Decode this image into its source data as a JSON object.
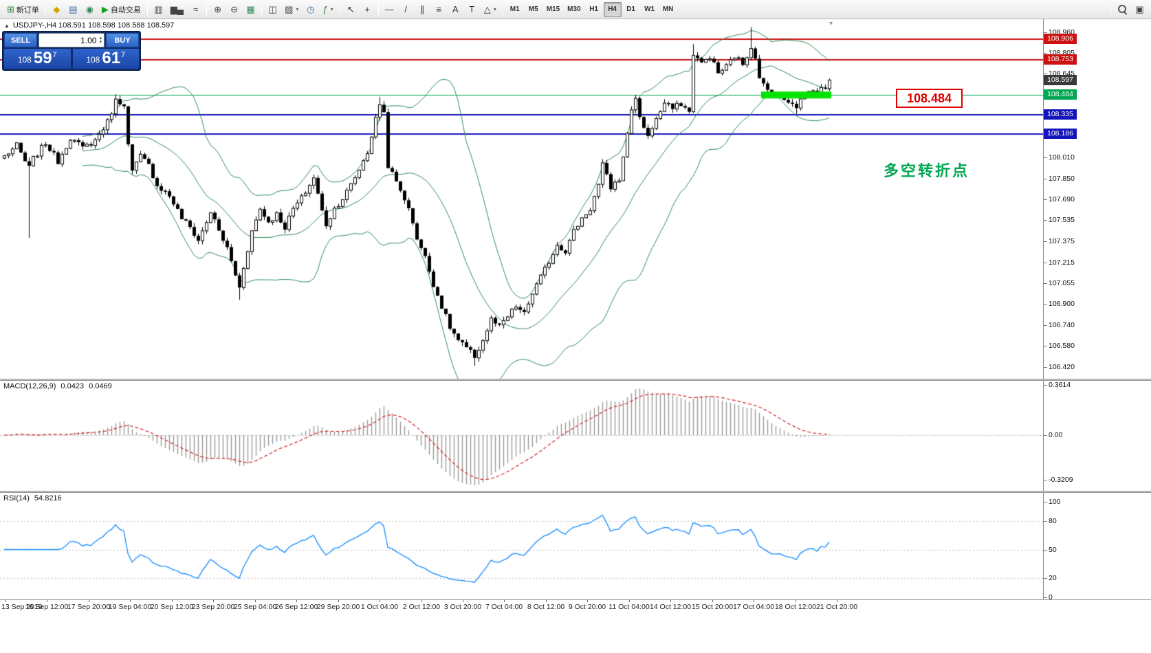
{
  "toolbar": {
    "groups": [
      {
        "items": [
          {
            "name": "new-order-button",
            "glyph": "⊞",
            "color": "#2e7d32",
            "label": "新订单"
          }
        ]
      },
      {
        "items": [
          {
            "name": "metaeditor-button",
            "glyph": "◆",
            "color": "#d8a400"
          },
          {
            "name": "market-depth-button",
            "glyph": "▤",
            "color": "#3a6ea5"
          },
          {
            "name": "strategy-tester-button",
            "glyph": "◉",
            "color": "#2e8b57"
          },
          {
            "name": "autotrade-button",
            "glyph": "▶",
            "color": "#18a018",
            "label": "自动交易"
          }
        ]
      },
      {
        "items": [
          {
            "name": "bar-chart-button",
            "glyph": "▥",
            "color": "#444"
          },
          {
            "name": "candlestick-chart-button",
            "glyph": "▆▄",
            "color": "#444"
          },
          {
            "name": "line-chart-button",
            "glyph": "≈",
            "color": "#444"
          }
        ]
      },
      {
        "items": [
          {
            "name": "zoom-in-button",
            "glyph": "⊕",
            "color": "#444"
          },
          {
            "name": "zoom-out-button",
            "glyph": "⊖",
            "color": "#444"
          },
          {
            "name": "grid-button",
            "glyph": "▦",
            "color": "#2e8b57"
          }
        ]
      },
      {
        "items": [
          {
            "name": "tile-windows-button",
            "glyph": "◫",
            "color": "#444"
          },
          {
            "name": "new-chart-button",
            "glyph": "▧",
            "color": "#444",
            "dropdown": true
          },
          {
            "name": "profiles-button",
            "glyph": "◷",
            "color": "#3a6ea5"
          },
          {
            "name": "indicators-button",
            "glyph": "ƒ",
            "color": "#2e7d32",
            "dropdown": true
          }
        ]
      },
      {
        "items": [
          {
            "name": "cursor-button",
            "glyph": "↖",
            "color": "#333"
          },
          {
            "name": "crosshair-button",
            "glyph": "+",
            "color": "#333"
          }
        ]
      },
      {
        "items": [
          {
            "name": "horizontal-line-button",
            "glyph": "—",
            "color": "#333"
          },
          {
            "name": "trendline-button",
            "glyph": "/",
            "color": "#333"
          },
          {
            "name": "channel-button",
            "glyph": "∥",
            "color": "#333"
          },
          {
            "name": "fibonacci-button",
            "glyph": "≡",
            "color": "#333"
          },
          {
            "name": "text-button",
            "glyph": "A",
            "color": "#333"
          },
          {
            "name": "label-button",
            "glyph": "T",
            "color": "#333"
          },
          {
            "name": "shapes-button",
            "glyph": "△",
            "color": "#333",
            "dropdown": true
          }
        ]
      },
      {
        "type": "timeframes"
      },
      {
        "type": "spacer"
      },
      {
        "items": [
          {
            "name": "search-button",
            "css": "mag"
          },
          {
            "name": "windows-list-button",
            "glyph": "▣",
            "color": "#444"
          }
        ]
      }
    ],
    "timeframes": [
      "M1",
      "M5",
      "M15",
      "M30",
      "H1",
      "H4",
      "D1",
      "W1",
      "MN"
    ],
    "active_timeframe": "H4"
  },
  "quote_line": {
    "symbol": "USDJPY-",
    "timeframe": "H4",
    "open": "108.591",
    "high": "108.598",
    "low": "108.588",
    "close": "108.597",
    "display": "USDJPY-,H4  108.591 108.598 108.588 108.597"
  },
  "trade_panel": {
    "sell_label": "SELL",
    "buy_label": "BUY",
    "volume": "1.00",
    "sell_prefix": "108",
    "sell_big": "59",
    "sell_sup": "7",
    "buy_prefix": "108",
    "buy_big": "61",
    "buy_sup": "7"
  },
  "chart": {
    "hlines": [
      {
        "price": 108.906,
        "color": "#cc1111",
        "width": 2
      },
      {
        "price": 108.753,
        "color": "#cc1111",
        "width": 2
      },
      {
        "price": 108.484,
        "color": "#00a651",
        "width": 1
      },
      {
        "price": 108.335,
        "color": "#1414bb",
        "width": 2
      },
      {
        "price": 108.186,
        "color": "#1414bb",
        "width": 2
      }
    ],
    "badges": [
      {
        "label": "108.906",
        "price": 108.906,
        "bg": "#cc1111"
      },
      {
        "label": "108.753",
        "price": 108.753,
        "bg": "#cc1111"
      },
      {
        "label": "108.597",
        "price": 108.597,
        "bg": "#3a3a3a"
      },
      {
        "label": "108.484",
        "price": 108.484,
        "bg": "#00a651"
      },
      {
        "label": "108.335",
        "price": 108.335,
        "bg": "#1414bb"
      },
      {
        "label": "108.186",
        "price": 108.186,
        "bg": "#1414bb"
      }
    ],
    "green_zone": {
      "price": 108.484,
      "start_candle": 184,
      "end_candle": 200,
      "color": "#00e300",
      "half_height": 5
    },
    "callout_label": "108.484",
    "annotation": "多空转折点",
    "annotation_color": "#00a651"
  },
  "indicators": {
    "macd": {
      "name": "MACD(12,26,9)",
      "value_main": "0.0423",
      "value_signal": "0.0469"
    },
    "rsi": {
      "name": "RSI(14)",
      "value": "54.8216"
    }
  },
  "chart_data": [
    {
      "type": "candlestick",
      "symbol": "USDJPY-",
      "timeframe": "H4",
      "candle_count": 201,
      "last_close": 108.597,
      "noise": 0.045,
      "ylim": [
        106.42,
        108.996
      ],
      "price_axis_ticks": [
        108.96,
        108.805,
        108.645,
        108.01,
        107.85,
        107.69,
        107.535,
        107.375,
        107.215,
        107.055,
        106.9,
        106.74,
        106.58,
        106.42
      ],
      "x_labels": [
        "13 Sep 2019",
        "16 Sep 12:00",
        "17 Sep 20:00",
        "19 Sep 04:00",
        "20 Sep 12:00",
        "23 Sep 20:00",
        "25 Sep 04:00",
        "26 Sep 12:00",
        "29 Sep 20:00",
        "1 Oct 04:00",
        "2 Oct 12:00",
        "3 Oct 20:00",
        "7 Oct 04:00",
        "8 Oct 12:00",
        "9 Oct 20:00",
        "11 Oct 04:00",
        "14 Oct 12:00",
        "15 Oct 20:00",
        "17 Oct 04:00",
        "18 Oct 12:00",
        "21 Oct 20:00"
      ],
      "overlays": {
        "bollinger": {
          "period": 20,
          "deviation": 2,
          "color": "#2e8b57"
        }
      },
      "price_anchors": [
        [
          0,
          108.02
        ],
        [
          3,
          108.1
        ],
        [
          5,
          107.98
        ],
        [
          6,
          107.93
        ],
        [
          7,
          108.0
        ],
        [
          10,
          108.12
        ],
        [
          13,
          107.98
        ],
        [
          16,
          108.16
        ],
        [
          19,
          108.08
        ],
        [
          22,
          108.14
        ],
        [
          25,
          108.28
        ],
        [
          27,
          108.44
        ],
        [
          29,
          108.42
        ],
        [
          30,
          108.1
        ],
        [
          31,
          107.9
        ],
        [
          33,
          108.02
        ],
        [
          35,
          107.95
        ],
        [
          37,
          107.8
        ],
        [
          40,
          107.72
        ],
        [
          43,
          107.55
        ],
        [
          45,
          107.48
        ],
        [
          47,
          107.38
        ],
        [
          49,
          107.52
        ],
        [
          50,
          107.6
        ],
        [
          52,
          107.45
        ],
        [
          54,
          107.32
        ],
        [
          56,
          107.12
        ],
        [
          57,
          107.02
        ],
        [
          58,
          107.18
        ],
        [
          60,
          107.45
        ],
        [
          62,
          107.62
        ],
        [
          64,
          107.52
        ],
        [
          66,
          107.58
        ],
        [
          68,
          107.48
        ],
        [
          70,
          107.62
        ],
        [
          72,
          107.7
        ],
        [
          74,
          107.8
        ],
        [
          75,
          107.86
        ],
        [
          77,
          107.6
        ],
        [
          78,
          107.5
        ],
        [
          80,
          107.62
        ],
        [
          82,
          107.7
        ],
        [
          84,
          107.8
        ],
        [
          86,
          107.92
        ],
        [
          88,
          108.05
        ],
        [
          90,
          108.3
        ],
        [
          91,
          108.42
        ],
        [
          92,
          108.35
        ],
        [
          93,
          107.95
        ],
        [
          95,
          107.82
        ],
        [
          97,
          107.7
        ],
        [
          99,
          107.52
        ],
        [
          100,
          107.4
        ],
        [
          102,
          107.25
        ],
        [
          104,
          107.05
        ],
        [
          106,
          106.88
        ],
        [
          108,
          106.72
        ],
        [
          110,
          106.62
        ],
        [
          112,
          106.56
        ],
        [
          114,
          106.5
        ],
        [
          116,
          106.62
        ],
        [
          118,
          106.78
        ],
        [
          120,
          106.72
        ],
        [
          122,
          106.8
        ],
        [
          124,
          106.88
        ],
        [
          126,
          106.82
        ],
        [
          128,
          106.98
        ],
        [
          130,
          107.1
        ],
        [
          132,
          107.22
        ],
        [
          134,
          107.35
        ],
        [
          136,
          107.3
        ],
        [
          138,
          107.45
        ],
        [
          140,
          107.55
        ],
        [
          142,
          107.62
        ],
        [
          144,
          107.8
        ],
        [
          145,
          107.95
        ],
        [
          147,
          107.78
        ],
        [
          149,
          107.85
        ],
        [
          150,
          108.0
        ],
        [
          151,
          108.2
        ],
        [
          152,
          108.38
        ],
        [
          153,
          108.45
        ],
        [
          155,
          108.22
        ],
        [
          156,
          108.18
        ],
        [
          158,
          108.3
        ],
        [
          160,
          108.42
        ],
        [
          162,
          108.38
        ],
        [
          164,
          108.42
        ],
        [
          166,
          108.35
        ],
        [
          167,
          108.8
        ],
        [
          169,
          108.72
        ],
        [
          171,
          108.78
        ],
        [
          173,
          108.65
        ],
        [
          175,
          108.7
        ],
        [
          177,
          108.78
        ],
        [
          179,
          108.72
        ],
        [
          181,
          108.85
        ],
        [
          182,
          108.78
        ],
        [
          183,
          108.6
        ],
        [
          185,
          108.52
        ],
        [
          187,
          108.48
        ],
        [
          189,
          108.45
        ],
        [
          191,
          108.43
        ],
        [
          192,
          108.4
        ],
        [
          193,
          108.45
        ],
        [
          195,
          108.52
        ],
        [
          197,
          108.5
        ],
        [
          199,
          108.55
        ],
        [
          200,
          108.597
        ]
      ],
      "spikes": [
        {
          "i": 6,
          "low": 107.4
        },
        {
          "i": 27,
          "high": 108.49
        },
        {
          "i": 57,
          "low": 106.93
        },
        {
          "i": 91,
          "high": 108.47
        },
        {
          "i": 114,
          "low": 106.43
        },
        {
          "i": 167,
          "high": 108.87
        },
        {
          "i": 181,
          "high": 109.0
        },
        {
          "i": 192,
          "low": 108.34
        }
      ]
    },
    {
      "type": "bar",
      "name": "MACD(12,26,9)",
      "derived_from": "close",
      "params": [
        12,
        26,
        9
      ],
      "current_values": [
        0.0423,
        0.0469
      ],
      "ylim": [
        -0.3209,
        0.3614
      ],
      "axis_labels": [
        "0.3614",
        "0.00",
        "-0.3209"
      ],
      "axis_values": [
        0.3614,
        0,
        -0.3209
      ],
      "histogram_color": "#9a9a9a",
      "signal_color": "#d22222"
    },
    {
      "type": "line",
      "name": "RSI(14)",
      "derived_from": "close",
      "period": 14,
      "current_value": 54.8216,
      "ylim": [
        0,
        100
      ],
      "axis_labels": [
        "100",
        "80",
        "50",
        "20",
        "0"
      ],
      "axis_values": [
        100,
        80,
        50,
        20,
        0
      ],
      "levels": [
        80,
        50,
        20
      ],
      "line_color": "#1e90ff"
    }
  ]
}
